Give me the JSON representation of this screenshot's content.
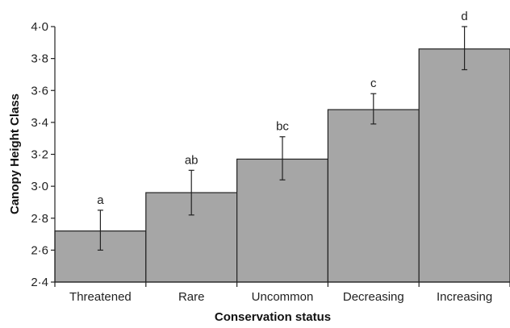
{
  "chart_data": {
    "type": "bar",
    "title": "",
    "xlabel": "Conservation status",
    "ylabel": "Canopy Height Class",
    "categories": [
      "Threatened",
      "Rare",
      "Uncommon",
      "Decreasing",
      "Increasing"
    ],
    "values": [
      2.72,
      2.96,
      3.17,
      3.48,
      3.86
    ],
    "error_low": [
      2.6,
      2.82,
      3.04,
      3.39,
      3.73
    ],
    "error_high": [
      2.85,
      3.1,
      3.31,
      3.58,
      4.0
    ],
    "significance_letters": [
      "a",
      "ab",
      "bc",
      "c",
      "d"
    ],
    "ylim": [
      2.4,
      4.0
    ],
    "yticks": [
      2.4,
      2.6,
      2.8,
      3.0,
      3.2,
      3.4,
      3.6,
      3.8,
      4.0
    ],
    "ytick_labels": [
      "2·4",
      "2·6",
      "2·8",
      "3·0",
      "3·2",
      "3·4",
      "3·6",
      "3·8",
      "4·0"
    ],
    "grid": false,
    "legend": "none",
    "bar_color": "#a6a6a6",
    "edge_color": "#222222"
  }
}
